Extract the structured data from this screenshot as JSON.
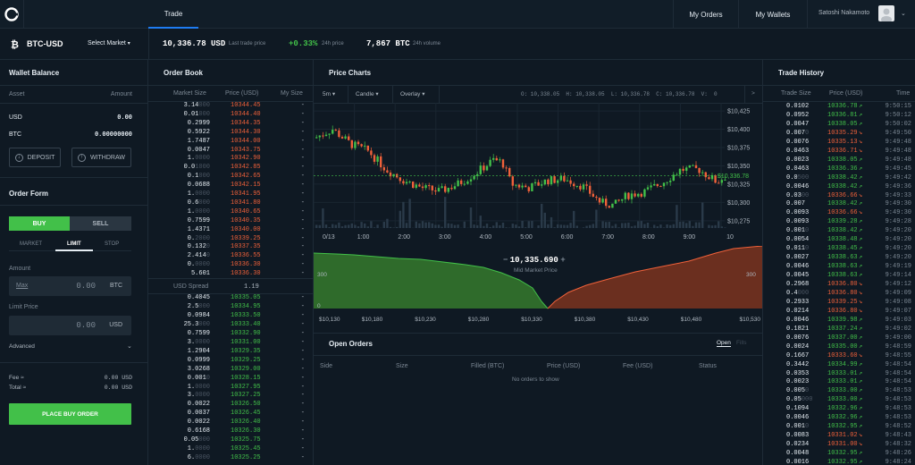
{
  "nav": {
    "trade": "Trade",
    "my_orders": "My Orders",
    "my_wallets": "My Wallets",
    "user": "Satoshi Nakamoto"
  },
  "market": {
    "pair": "BTC-USD",
    "select": "Select Market",
    "last_price": "10,336.78",
    "last_unit": "USD",
    "last_label": "Last trade price",
    "change": "+0.33%",
    "change_label": "24h price",
    "volume": "7,867",
    "vol_unit": "BTC",
    "vol_label": "24h volume"
  },
  "wallet": {
    "title": "Wallet Balance",
    "col_asset": "Asset",
    "col_amount": "Amount",
    "rows": [
      {
        "asset": "USD",
        "amount": "0.00"
      },
      {
        "asset": "BTC",
        "amount": "0.00000000"
      }
    ],
    "deposit": "DEPOSIT",
    "withdraw": "WITHDRAW"
  },
  "order_form": {
    "title": "Order Form",
    "buy": "BUY",
    "sell": "SELL",
    "types": [
      "MARKET",
      "LIMIT",
      "STOP"
    ],
    "amount_label": "Amount",
    "max": "Max",
    "amount_value": "0.00",
    "amount_unit": "BTC",
    "limit_label": "Limit Price",
    "limit_value": "0.00",
    "limit_unit": "USD",
    "advanced": "Advanced",
    "fee_label": "Fee ≈",
    "fee_value": "0.00 USD",
    "total_label": "Total ≈",
    "total_value": "0.00 USD",
    "place": "PLACE BUY ORDER"
  },
  "orderbook": {
    "title": "Order Book",
    "col_size": "Market Size",
    "col_price": "Price (USD)",
    "col_my": "My Size",
    "spread_label": "USD Spread",
    "spread_value": "1.19",
    "asks": [
      [
        "3.14",
        "000",
        "10344.45"
      ],
      [
        "0.01",
        "000",
        "10344.40"
      ],
      [
        "0.2999",
        "",
        "10344.35"
      ],
      [
        "0.5922",
        "",
        "10344.30"
      ],
      [
        "1.7487",
        "",
        "10344.00"
      ],
      [
        "0.0047",
        "",
        "10343.75"
      ],
      [
        "1.",
        "0000",
        "10342.90"
      ],
      [
        "0.0",
        "1000",
        "10342.85"
      ],
      [
        "0.1",
        "000",
        "10342.65"
      ],
      [
        "0.0688",
        "",
        "10342.15"
      ],
      [
        "1.",
        "0000",
        "10341.95"
      ],
      [
        "0.6",
        "000",
        "10341.80"
      ],
      [
        "1.",
        "0000",
        "10340.65"
      ],
      [
        "0.7599",
        "",
        "10340.35"
      ],
      [
        "1.4371",
        "",
        "10340.00"
      ],
      [
        "0.",
        "2000",
        "10339.25"
      ],
      [
        "0.132",
        "0",
        "10337.35"
      ],
      [
        "2.414",
        "0",
        "10336.55"
      ],
      [
        "0.",
        "0000",
        "10336.30"
      ],
      [
        "5.601",
        "",
        "10336.30"
      ]
    ],
    "bids": [
      [
        "0.4045",
        "",
        "10335.05"
      ],
      [
        "2.5",
        "000",
        "10334.95"
      ],
      [
        "0.0984",
        "",
        "10333.50"
      ],
      [
        "25.3",
        "000",
        "10333.40"
      ],
      [
        "0.7599",
        "",
        "10332.90"
      ],
      [
        "3.",
        "0000",
        "10331.00"
      ],
      [
        "1.2904",
        "",
        "10329.35"
      ],
      [
        "0.0999",
        "",
        "10329.25"
      ],
      [
        "3.0268",
        "",
        "10329.00"
      ],
      [
        "0.001",
        "0",
        "10328.15"
      ],
      [
        "1.",
        "0000",
        "10327.95"
      ],
      [
        "3.",
        "0000",
        "10327.25"
      ],
      [
        "0.0022",
        "",
        "10326.50"
      ],
      [
        "0.0037",
        "",
        "10326.45"
      ],
      [
        "0.0022",
        "",
        "10326.40"
      ],
      [
        "0.6168",
        "",
        "10326.30"
      ],
      [
        "0.05",
        "000",
        "10325.75"
      ],
      [
        "1.",
        "0000",
        "10325.45"
      ],
      [
        "6.",
        "0000",
        "10325.25"
      ]
    ],
    "dashes": "-"
  },
  "chart": {
    "title": "Price Charts",
    "interval": "5m",
    "style": "Candle",
    "overlay": "Overlay",
    "ohlc": "O: 10,338.05  H: 10,338.05  L: 10,336.78  C: 10,336.78  V:  0",
    "next": ">",
    "y_ticks": [
      "$10,425",
      "$10,400",
      "$10,375",
      "$10,350",
      "$10,325",
      "$10,300",
      "$10,275"
    ],
    "current": "$10,336.78",
    "x_ticks": [
      "0/13",
      "1:00",
      "2:00",
      "3:00",
      "4:00",
      "5:00",
      "6:00",
      "7:00",
      "8:00",
      "9:00",
      "10"
    ],
    "mid_price": "10,335.690",
    "mid_label": "Mid Market Price",
    "minus": "−",
    "plus": "+",
    "depth_x": [
      "$10,130",
      "$10,180",
      "$10,230",
      "$10,280",
      "$10,330",
      "$10,380",
      "$10,430",
      "$10,480",
      "$10,530"
    ],
    "depth_y_left": "300",
    "depth_y_right": "300",
    "depth_zero": "0"
  },
  "open_orders": {
    "title": "Open Orders",
    "tab_open": "Open",
    "tab_fills": "Fills",
    "cols": [
      "Side",
      "Size",
      "Filled (BTC)",
      "Price (USD)",
      "Fee (USD)",
      "Status"
    ],
    "empty": "No orders to show"
  },
  "trade_history": {
    "title": "Trade History",
    "col_size": "Trade Size",
    "col_price": "Price (USD)",
    "col_time": "Time",
    "rows": [
      [
        "0.0102",
        "",
        "10336.78",
        "g",
        "9:50:15"
      ],
      [
        "0.0952",
        "",
        "10336.81",
        "g",
        "9:50:12"
      ],
      [
        "0.0047",
        "",
        "10338.05",
        "g",
        "9:50:02"
      ],
      [
        "0.007",
        "0",
        "10335.29",
        "r",
        "9:49:50"
      ],
      [
        "0.0076",
        "",
        "10335.13",
        "r",
        "9:49:48"
      ],
      [
        "0.0463",
        "",
        "10336.71",
        "r",
        "9:49:48"
      ],
      [
        "0.0023",
        "",
        "10338.05",
        "g",
        "9:49:48"
      ],
      [
        "0.0463",
        "",
        "10336.36",
        "g",
        "9:49:45"
      ],
      [
        "0.0",
        "500",
        "10338.42",
        "g",
        "9:49:42"
      ],
      [
        "0.0046",
        "",
        "10338.42",
        "g",
        "9:49:36"
      ],
      [
        "0.03",
        "00",
        "10336.66",
        "r",
        "9:49:33"
      ],
      [
        "0.007",
        "",
        "10338.42",
        "g",
        "9:49:30"
      ],
      [
        "0.0093",
        "",
        "10336.66",
        "r",
        "9:49:30"
      ],
      [
        "0.0093",
        "",
        "10339.28",
        "g",
        "9:49:28"
      ],
      [
        "0.001",
        "0",
        "10338.42",
        "g",
        "9:49:20"
      ],
      [
        "0.0054",
        "",
        "10338.48",
        "g",
        "9:49:20"
      ],
      [
        "0.011",
        "0",
        "10338.45",
        "g",
        "9:49:20"
      ],
      [
        "0.0027",
        "",
        "10338.63",
        "g",
        "9:49:20"
      ],
      [
        "0.0046",
        "",
        "10338.63",
        "g",
        "9:49:19"
      ],
      [
        "0.0045",
        "",
        "10338.63",
        "g",
        "9:49:14"
      ],
      [
        "0.2968",
        "",
        "10336.80",
        "r",
        "9:49:12"
      ],
      [
        "0.4",
        "000",
        "10336.80",
        "r",
        "9:49:09"
      ],
      [
        "0.2933",
        "",
        "10339.25",
        "r",
        "9:49:08"
      ],
      [
        "0.0214",
        "",
        "10336.80",
        "r",
        "9:49:07"
      ],
      [
        "0.0046",
        "",
        "10339.98",
        "g",
        "9:49:03"
      ],
      [
        "0.1821",
        "",
        "10337.24",
        "g",
        "9:49:02"
      ],
      [
        "0.0076",
        "",
        "10337.00",
        "g",
        "9:49:00"
      ],
      [
        "0.0024",
        "",
        "10335.00",
        "g",
        "9:48:59"
      ],
      [
        "0.1667",
        "",
        "10333.60",
        "r",
        "9:48:55"
      ],
      [
        "0.3442",
        "",
        "10334.99",
        "g",
        "9:48:54"
      ],
      [
        "0.0353",
        "",
        "10333.01",
        "g",
        "9:48:54"
      ],
      [
        "0.0023",
        "",
        "10333.01",
        "g",
        "9:48:54"
      ],
      [
        "0.005",
        "0",
        "10333.00",
        "g",
        "9:48:53"
      ],
      [
        "0.05",
        "000",
        "10333.00",
        "g",
        "9:48:53"
      ],
      [
        "0.1094",
        "",
        "10332.96",
        "g",
        "9:48:53"
      ],
      [
        "0.0046",
        "",
        "10332.96",
        "g",
        "9:48:53"
      ],
      [
        "0.001",
        "0",
        "10332.95",
        "g",
        "9:48:52"
      ],
      [
        "0.0083",
        "",
        "10331.02",
        "r",
        "9:48:43"
      ],
      [
        "0.0234",
        "",
        "10331.00",
        "r",
        "9:48:32"
      ],
      [
        "0.0048",
        "",
        "10332.95",
        "g",
        "9:48:26"
      ],
      [
        "0.0016",
        "",
        "10332.95",
        "g",
        "9:48:24"
      ]
    ]
  },
  "colors": {
    "buy": "#42c049",
    "sell": "#f0613a",
    "accent": "#1e7cf2"
  }
}
